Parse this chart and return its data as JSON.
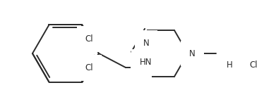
{
  "background_color": "#ffffff",
  "line_color": "#2a2a2a",
  "text_color": "#2a2a2a",
  "line_width": 1.4,
  "font_size": 8.5,
  "figsize": [
    3.74,
    1.55
  ],
  "dpi": 100,
  "xlim": [
    0,
    374
  ],
  "ylim": [
    0,
    155
  ]
}
